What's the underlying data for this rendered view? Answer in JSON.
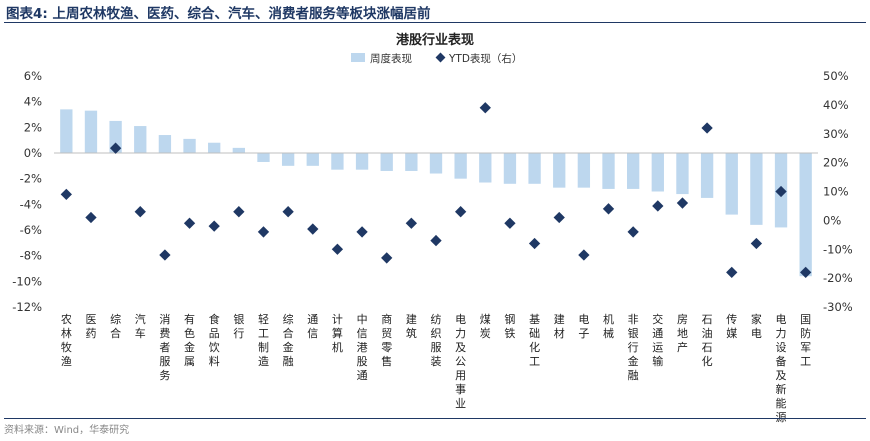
{
  "figure_title": "图表4:  上周农林牧渔、医药、综合、汽车、消费者服务等板块涨幅居前",
  "source": "资料来源：Wind，华泰研究",
  "colors": {
    "bar": "#bdd7ee",
    "marker": "#1f3864",
    "title_rule": "#1f3864"
  },
  "chart_data": {
    "type": "bar",
    "title": "港股行业表现",
    "legend_position": "top-center",
    "grid": false,
    "categories": [
      "农林牧渔",
      "医药",
      "综合",
      "汽车",
      "消费者服务",
      "有色金属",
      "食品饮料",
      "银行",
      "轻工制造",
      "综合金融",
      "通信",
      "计算机",
      "中信港股通",
      "商贸零售",
      "建筑",
      "纺织服装",
      "电力及公用事业",
      "煤炭",
      "钢铁",
      "基础化工",
      "建材",
      "电子",
      "机械",
      "非银行金融",
      "交通运输",
      "房地产",
      "石油石化",
      "传媒",
      "家电",
      "电力设备及新能源",
      "国防军工"
    ],
    "left_axis": {
      "ylim": [
        -12,
        6
      ],
      "ticks": [
        6,
        4,
        2,
        0,
        -2,
        -4,
        -6,
        -8,
        -10,
        -12
      ],
      "tick_labels": [
        "6%",
        "4%",
        "2%",
        "0%",
        "-2%",
        "-4%",
        "-6%",
        "-8%",
        "-10%",
        "-12%"
      ]
    },
    "right_axis": {
      "ylim": [
        -30,
        50
      ],
      "ticks": [
        50,
        40,
        30,
        20,
        10,
        0,
        -10,
        -20,
        -30
      ],
      "tick_labels": [
        "50%",
        "40%",
        "30%",
        "20%",
        "10%",
        "0%",
        "-10%",
        "-20%",
        "-30%"
      ]
    },
    "series": [
      {
        "name": "周度表现",
        "kind": "bar",
        "axis": "left",
        "values": [
          3.4,
          3.3,
          2.5,
          2.1,
          1.4,
          1.1,
          0.8,
          0.4,
          -0.7,
          -1.0,
          -1.0,
          -1.3,
          -1.3,
          -1.4,
          -1.4,
          -1.6,
          -2.0,
          -2.3,
          -2.4,
          -2.4,
          -2.7,
          -2.7,
          -2.8,
          -2.8,
          -3.0,
          -3.2,
          -3.5,
          -4.8,
          -5.6,
          -5.8,
          -9.6
        ]
      },
      {
        "name": "YTD表现（右）",
        "kind": "scatter",
        "axis": "right",
        "values": [
          9,
          1,
          25,
          3,
          -12,
          -1,
          -2,
          3,
          -4,
          3,
          -3,
          -10,
          -4,
          -13,
          -1,
          -7,
          3,
          39,
          -1,
          -8,
          1,
          -12,
          4,
          -4,
          5,
          6,
          32,
          -18,
          -8,
          10,
          -18
        ]
      }
    ]
  }
}
